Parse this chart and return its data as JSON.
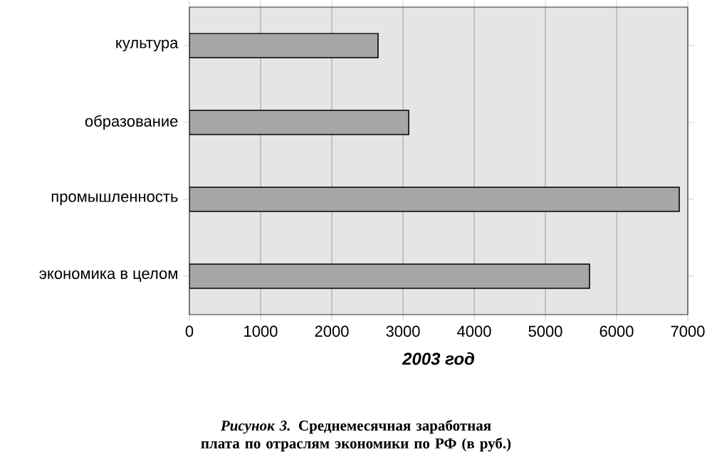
{
  "chart_data": {
    "type": "bar",
    "orientation": "horizontal",
    "categories": [
      "культура",
      "образование",
      "промышленность",
      "экономика в целом"
    ],
    "values": [
      2650,
      3080,
      6880,
      5620
    ],
    "color": "#a6a6a6",
    "xlabel": "2003 год",
    "xlim": [
      0,
      7000
    ],
    "xticks": [
      0,
      1000,
      2000,
      3000,
      4000,
      5000,
      6000,
      7000
    ],
    "grid": "x",
    "annotations": [
      "*Рисунок 3.* Среднемесячная заработная плата по отраслям экономики по РФ (в руб.)"
    ]
  }
}
